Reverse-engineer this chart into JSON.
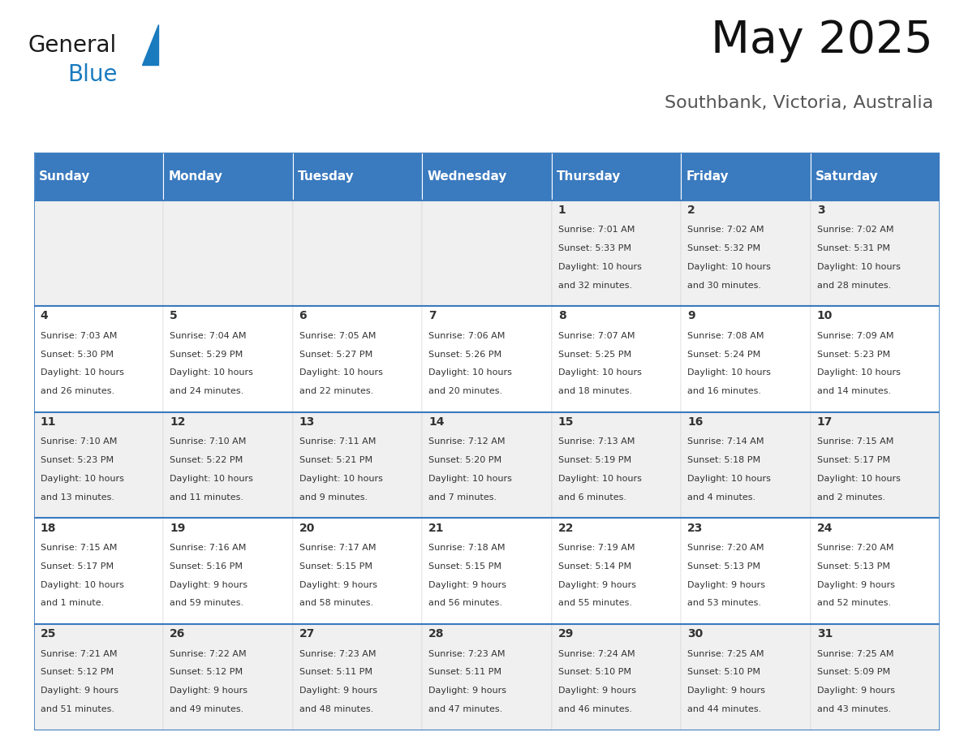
{
  "title": "May 2025",
  "subtitle": "Southbank, Victoria, Australia",
  "header_color": "#3a7abf",
  "header_text_color": "#ffffff",
  "day_names": [
    "Sunday",
    "Monday",
    "Tuesday",
    "Wednesday",
    "Thursday",
    "Friday",
    "Saturday"
  ],
  "background_color": "#ffffff",
  "cell_bg_even": "#f0f0f0",
  "cell_bg_odd": "#ffffff",
  "border_color": "#3a7abf",
  "text_color": "#333333",
  "days": [
    {
      "date": 1,
      "col": 4,
      "row": 0,
      "sunrise": "7:01 AM",
      "sunset": "5:33 PM",
      "daylight": "10 hours",
      "daylight2": "and 32 minutes."
    },
    {
      "date": 2,
      "col": 5,
      "row": 0,
      "sunrise": "7:02 AM",
      "sunset": "5:32 PM",
      "daylight": "10 hours",
      "daylight2": "and 30 minutes."
    },
    {
      "date": 3,
      "col": 6,
      "row": 0,
      "sunrise": "7:02 AM",
      "sunset": "5:31 PM",
      "daylight": "10 hours",
      "daylight2": "and 28 minutes."
    },
    {
      "date": 4,
      "col": 0,
      "row": 1,
      "sunrise": "7:03 AM",
      "sunset": "5:30 PM",
      "daylight": "10 hours",
      "daylight2": "and 26 minutes."
    },
    {
      "date": 5,
      "col": 1,
      "row": 1,
      "sunrise": "7:04 AM",
      "sunset": "5:29 PM",
      "daylight": "10 hours",
      "daylight2": "and 24 minutes."
    },
    {
      "date": 6,
      "col": 2,
      "row": 1,
      "sunrise": "7:05 AM",
      "sunset": "5:27 PM",
      "daylight": "10 hours",
      "daylight2": "and 22 minutes."
    },
    {
      "date": 7,
      "col": 3,
      "row": 1,
      "sunrise": "7:06 AM",
      "sunset": "5:26 PM",
      "daylight": "10 hours",
      "daylight2": "and 20 minutes."
    },
    {
      "date": 8,
      "col": 4,
      "row": 1,
      "sunrise": "7:07 AM",
      "sunset": "5:25 PM",
      "daylight": "10 hours",
      "daylight2": "and 18 minutes."
    },
    {
      "date": 9,
      "col": 5,
      "row": 1,
      "sunrise": "7:08 AM",
      "sunset": "5:24 PM",
      "daylight": "10 hours",
      "daylight2": "and 16 minutes."
    },
    {
      "date": 10,
      "col": 6,
      "row": 1,
      "sunrise": "7:09 AM",
      "sunset": "5:23 PM",
      "daylight": "10 hours",
      "daylight2": "and 14 minutes."
    },
    {
      "date": 11,
      "col": 0,
      "row": 2,
      "sunrise": "7:10 AM",
      "sunset": "5:23 PM",
      "daylight": "10 hours",
      "daylight2": "and 13 minutes."
    },
    {
      "date": 12,
      "col": 1,
      "row": 2,
      "sunrise": "7:10 AM",
      "sunset": "5:22 PM",
      "daylight": "10 hours",
      "daylight2": "and 11 minutes."
    },
    {
      "date": 13,
      "col": 2,
      "row": 2,
      "sunrise": "7:11 AM",
      "sunset": "5:21 PM",
      "daylight": "10 hours",
      "daylight2": "and 9 minutes."
    },
    {
      "date": 14,
      "col": 3,
      "row": 2,
      "sunrise": "7:12 AM",
      "sunset": "5:20 PM",
      "daylight": "10 hours",
      "daylight2": "and 7 minutes."
    },
    {
      "date": 15,
      "col": 4,
      "row": 2,
      "sunrise": "7:13 AM",
      "sunset": "5:19 PM",
      "daylight": "10 hours",
      "daylight2": "and 6 minutes."
    },
    {
      "date": 16,
      "col": 5,
      "row": 2,
      "sunrise": "7:14 AM",
      "sunset": "5:18 PM",
      "daylight": "10 hours",
      "daylight2": "and 4 minutes."
    },
    {
      "date": 17,
      "col": 6,
      "row": 2,
      "sunrise": "7:15 AM",
      "sunset": "5:17 PM",
      "daylight": "10 hours",
      "daylight2": "and 2 minutes."
    },
    {
      "date": 18,
      "col": 0,
      "row": 3,
      "sunrise": "7:15 AM",
      "sunset": "5:17 PM",
      "daylight": "10 hours",
      "daylight2": "and 1 minute."
    },
    {
      "date": 19,
      "col": 1,
      "row": 3,
      "sunrise": "7:16 AM",
      "sunset": "5:16 PM",
      "daylight": "9 hours",
      "daylight2": "and 59 minutes."
    },
    {
      "date": 20,
      "col": 2,
      "row": 3,
      "sunrise": "7:17 AM",
      "sunset": "5:15 PM",
      "daylight": "9 hours",
      "daylight2": "and 58 minutes."
    },
    {
      "date": 21,
      "col": 3,
      "row": 3,
      "sunrise": "7:18 AM",
      "sunset": "5:15 PM",
      "daylight": "9 hours",
      "daylight2": "and 56 minutes."
    },
    {
      "date": 22,
      "col": 4,
      "row": 3,
      "sunrise": "7:19 AM",
      "sunset": "5:14 PM",
      "daylight": "9 hours",
      "daylight2": "and 55 minutes."
    },
    {
      "date": 23,
      "col": 5,
      "row": 3,
      "sunrise": "7:20 AM",
      "sunset": "5:13 PM",
      "daylight": "9 hours",
      "daylight2": "and 53 minutes."
    },
    {
      "date": 24,
      "col": 6,
      "row": 3,
      "sunrise": "7:20 AM",
      "sunset": "5:13 PM",
      "daylight": "9 hours",
      "daylight2": "and 52 minutes."
    },
    {
      "date": 25,
      "col": 0,
      "row": 4,
      "sunrise": "7:21 AM",
      "sunset": "5:12 PM",
      "daylight": "9 hours",
      "daylight2": "and 51 minutes."
    },
    {
      "date": 26,
      "col": 1,
      "row": 4,
      "sunrise": "7:22 AM",
      "sunset": "5:12 PM",
      "daylight": "9 hours",
      "daylight2": "and 49 minutes."
    },
    {
      "date": 27,
      "col": 2,
      "row": 4,
      "sunrise": "7:23 AM",
      "sunset": "5:11 PM",
      "daylight": "9 hours",
      "daylight2": "and 48 minutes."
    },
    {
      "date": 28,
      "col": 3,
      "row": 4,
      "sunrise": "7:23 AM",
      "sunset": "5:11 PM",
      "daylight": "9 hours",
      "daylight2": "and 47 minutes."
    },
    {
      "date": 29,
      "col": 4,
      "row": 4,
      "sunrise": "7:24 AM",
      "sunset": "5:10 PM",
      "daylight": "9 hours",
      "daylight2": "and 46 minutes."
    },
    {
      "date": 30,
      "col": 5,
      "row": 4,
      "sunrise": "7:25 AM",
      "sunset": "5:10 PM",
      "daylight": "9 hours",
      "daylight2": "and 44 minutes."
    },
    {
      "date": 31,
      "col": 6,
      "row": 4,
      "sunrise": "7:25 AM",
      "sunset": "5:09 PM",
      "daylight": "9 hours",
      "daylight2": "and 43 minutes."
    }
  ],
  "logo_text_general": "General",
  "logo_text_blue": "Blue",
  "logo_color_general": "#1a1a1a",
  "logo_color_blue": "#1a7bbf",
  "logo_triangle_color": "#1a7bbf",
  "title_fontsize": 40,
  "subtitle_fontsize": 16,
  "header_fontsize": 11,
  "date_fontsize": 10,
  "cell_fontsize": 8
}
